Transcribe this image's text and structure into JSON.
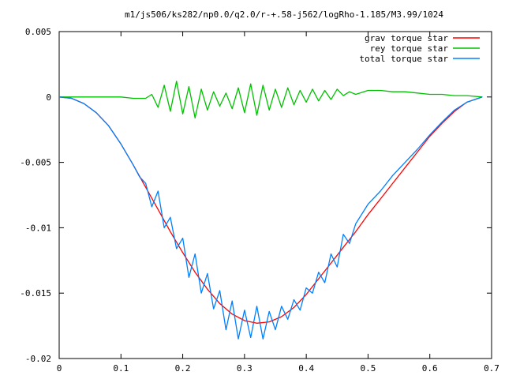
{
  "chart_data": {
    "type": "line",
    "title": "m1/js506/ks282/np0.0/q2.0/r-+.58-j562/logRho-1.185/M3.99/1024",
    "xlabel": "",
    "ylabel": "",
    "xlim": [
      0,
      0.7
    ],
    "ylim": [
      -0.02,
      0.005
    ],
    "x_ticks": [
      0,
      0.1,
      0.2,
      0.3,
      0.4,
      0.5,
      0.6,
      0.7
    ],
    "x_tick_labels": [
      "0",
      "0.1",
      "0.2",
      "0.3",
      "0.4",
      "0.5",
      "0.6",
      "0.7"
    ],
    "y_ticks": [
      0.005,
      0,
      -0.005,
      -0.01,
      -0.015,
      -0.02
    ],
    "y_tick_labels": [
      "0.005",
      "0",
      "-0.005",
      "-0.01",
      "-0.015",
      "-0.02"
    ],
    "grid": false,
    "legend_position": "top-right",
    "series": [
      {
        "name": "grav torque star",
        "color": "#ff0000",
        "x": [
          0,
          0.02,
          0.04,
          0.06,
          0.08,
          0.1,
          0.12,
          0.14,
          0.16,
          0.18,
          0.2,
          0.22,
          0.24,
          0.26,
          0.28,
          0.3,
          0.32,
          0.34,
          0.36,
          0.38,
          0.4,
          0.42,
          0.44,
          0.46,
          0.48,
          0.5,
          0.52,
          0.54,
          0.56,
          0.58,
          0.6,
          0.62,
          0.64,
          0.66,
          0.685
        ],
        "y": [
          0,
          -0.0001,
          -0.0005,
          -0.0012,
          -0.0022,
          -0.0036,
          -0.0052,
          -0.0069,
          -0.0086,
          -0.0103,
          -0.0119,
          -0.0134,
          -0.0147,
          -0.0158,
          -0.0166,
          -0.0171,
          -0.0173,
          -0.0172,
          -0.0168,
          -0.0161,
          -0.0151,
          -0.0139,
          -0.0127,
          -0.0115,
          -0.0103,
          -0.009,
          -0.0078,
          -0.0066,
          -0.0054,
          -0.0042,
          -0.003,
          -0.002,
          -0.0011,
          -0.0004,
          0
        ]
      },
      {
        "name": "rey torque star",
        "color": "#00c000",
        "x": [
          0,
          0.05,
          0.1,
          0.12,
          0.14,
          0.15,
          0.16,
          0.17,
          0.18,
          0.19,
          0.2,
          0.21,
          0.22,
          0.23,
          0.24,
          0.25,
          0.26,
          0.27,
          0.28,
          0.29,
          0.3,
          0.31,
          0.32,
          0.33,
          0.34,
          0.35,
          0.36,
          0.37,
          0.38,
          0.39,
          0.4,
          0.41,
          0.42,
          0.43,
          0.44,
          0.45,
          0.46,
          0.47,
          0.48,
          0.5,
          0.52,
          0.54,
          0.56,
          0.58,
          0.6,
          0.62,
          0.64,
          0.66,
          0.685
        ],
        "y": [
          0,
          0,
          0,
          -0.0001,
          -0.0001,
          0.0002,
          -0.0008,
          0.0009,
          -0.0011,
          0.0012,
          -0.0013,
          0.0008,
          -0.0016,
          0.0006,
          -0.001,
          0.0004,
          -0.0007,
          0.0003,
          -0.0009,
          0.0007,
          -0.0012,
          0.001,
          -0.0014,
          0.0009,
          -0.001,
          0.0006,
          -0.0008,
          0.0007,
          -0.0006,
          0.0005,
          -0.0004,
          0.0006,
          -0.0003,
          0.0005,
          -0.0002,
          0.0006,
          0.0001,
          0.0004,
          0.0002,
          0.0005,
          0.0005,
          0.0004,
          0.0004,
          0.0003,
          0.0002,
          0.0002,
          0.0001,
          0.0001,
          0
        ]
      },
      {
        "name": "total torque star",
        "color": "#0080ff",
        "x": [
          0,
          0.02,
          0.04,
          0.06,
          0.08,
          0.1,
          0.12,
          0.13,
          0.14,
          0.15,
          0.16,
          0.17,
          0.18,
          0.19,
          0.2,
          0.21,
          0.22,
          0.23,
          0.24,
          0.25,
          0.26,
          0.27,
          0.28,
          0.29,
          0.3,
          0.31,
          0.32,
          0.33,
          0.34,
          0.35,
          0.36,
          0.37,
          0.38,
          0.39,
          0.4,
          0.41,
          0.42,
          0.43,
          0.44,
          0.45,
          0.46,
          0.47,
          0.48,
          0.5,
          0.52,
          0.54,
          0.56,
          0.58,
          0.6,
          0.62,
          0.64,
          0.66,
          0.685
        ],
        "y": [
          0,
          -0.0001,
          -0.0005,
          -0.0012,
          -0.0022,
          -0.0036,
          -0.0052,
          -0.0061,
          -0.0066,
          -0.0084,
          -0.0072,
          -0.01,
          -0.0092,
          -0.0116,
          -0.0108,
          -0.0138,
          -0.012,
          -0.015,
          -0.0135,
          -0.0162,
          -0.0148,
          -0.0178,
          -0.0156,
          -0.0185,
          -0.0163,
          -0.0184,
          -0.016,
          -0.0185,
          -0.0164,
          -0.0178,
          -0.016,
          -0.017,
          -0.0155,
          -0.0163,
          -0.0146,
          -0.015,
          -0.0134,
          -0.0142,
          -0.012,
          -0.013,
          -0.0105,
          -0.0112,
          -0.0097,
          -0.0082,
          -0.0072,
          -0.006,
          -0.005,
          -0.004,
          -0.0029,
          -0.0019,
          -0.001,
          -0.0004,
          0
        ]
      }
    ]
  }
}
